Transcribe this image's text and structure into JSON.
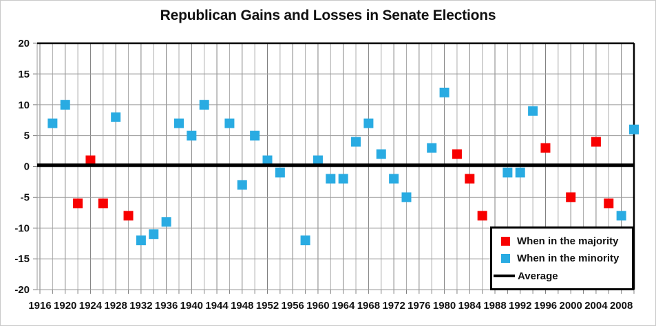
{
  "title": "Republican Gains and Losses in Senate Elections",
  "legend": {
    "majority_label": "When in the majority",
    "minority_label": "When in the minority",
    "average_label": "Average"
  },
  "colors": {
    "majority": "#f80000",
    "minority": "#29abe2",
    "average_line": "#000000",
    "grid_major": "#7f7f7f",
    "grid_minor": "#ababab",
    "axis_line": "#9a9a9a",
    "plot_border_dark": "#000000",
    "text": "#111111"
  },
  "chart_data": {
    "type": "scatter",
    "title": "Republican Gains and Losses in Senate Elections",
    "xlabel": "",
    "ylabel": "",
    "xlim": [
      1916,
      2010
    ],
    "ylim": [
      -20,
      20
    ],
    "x_gridline_step": 2,
    "x_tick_labels": [
      1916,
      1920,
      1924,
      1928,
      1932,
      1936,
      1940,
      1944,
      1948,
      1952,
      1956,
      1960,
      1964,
      1968,
      1972,
      1976,
      1980,
      1984,
      1988,
      1992,
      1996,
      2000,
      2004,
      2008
    ],
    "y_tick_labels": [
      20,
      15,
      10,
      5,
      0,
      -5,
      -10,
      -15,
      -20
    ],
    "grid": true,
    "legend_position": "lower-right",
    "average_value": 0.2,
    "series": [
      {
        "name": "When in the majority",
        "color_key": "majority",
        "points": [
          [
            1922,
            -6
          ],
          [
            1924,
            1
          ],
          [
            1926,
            -6
          ],
          [
            1930,
            -8
          ],
          [
            1982,
            2
          ],
          [
            1984,
            -2
          ],
          [
            1986,
            -8
          ],
          [
            1996,
            3
          ],
          [
            2000,
            -5
          ],
          [
            2004,
            4
          ],
          [
            2006,
            -6
          ]
        ]
      },
      {
        "name": "When in the minority",
        "color_key": "minority",
        "points": [
          [
            1918,
            7
          ],
          [
            1920,
            10
          ],
          [
            1928,
            8
          ],
          [
            1932,
            -12
          ],
          [
            1934,
            -11
          ],
          [
            1936,
            -9
          ],
          [
            1938,
            7
          ],
          [
            1940,
            5
          ],
          [
            1942,
            10
          ],
          [
            1946,
            7
          ],
          [
            1948,
            -3
          ],
          [
            1950,
            5
          ],
          [
            1952,
            1
          ],
          [
            1954,
            -1
          ],
          [
            1958,
            -12
          ],
          [
            1960,
            1
          ],
          [
            1962,
            -2
          ],
          [
            1964,
            -2
          ],
          [
            1966,
            4
          ],
          [
            1968,
            7
          ],
          [
            1970,
            2
          ],
          [
            1972,
            -2
          ],
          [
            1974,
            -5
          ],
          [
            1978,
            3
          ],
          [
            1980,
            12
          ],
          [
            1990,
            -1
          ],
          [
            1992,
            -1
          ],
          [
            1994,
            9
          ],
          [
            2008,
            -8
          ],
          [
            2010,
            6
          ]
        ]
      }
    ]
  }
}
